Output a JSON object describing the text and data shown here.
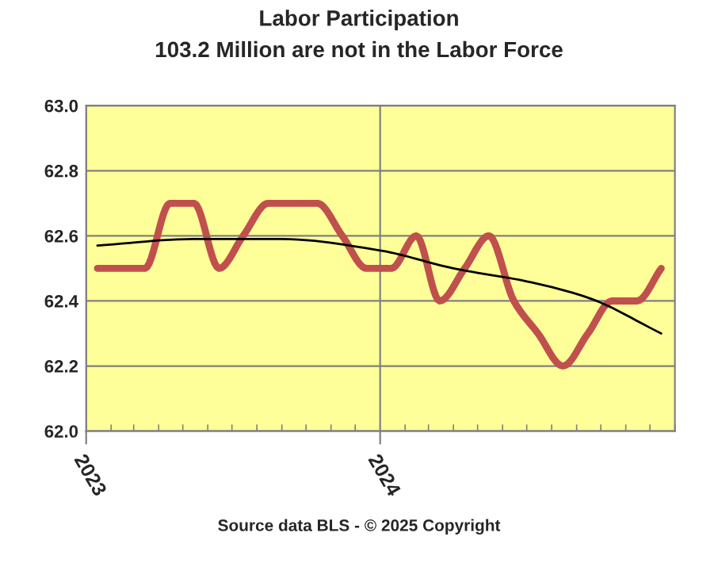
{
  "chart_data": {
    "type": "line",
    "title": "Labor Participation",
    "subtitle": "103.2 Million are not in the Labor Force",
    "annotations": [
      "Source data BLS - © 2025 Copyright"
    ],
    "series": [
      {
        "color": "#c0504d",
        "x": [
          "2023-01-15",
          "2023-02-15",
          "2023-03-15",
          "2023-04-15",
          "2023-05-15",
          "2023-06-15",
          "2023-07-15",
          "2023-08-15",
          "2023-09-15",
          "2023-10-15",
          "2023-11-15",
          "2023-12-15",
          "2024-01-15",
          "2024-02-15",
          "2024-03-15",
          "2024-04-15",
          "2024-05-15",
          "2024-06-15",
          "2024-07-15",
          "2024-08-15",
          "2024-09-15",
          "2024-10-15",
          "2024-11-15",
          "2024-12-15"
        ],
        "values": [
          62.5,
          62.5,
          62.5,
          62.7,
          62.7,
          62.5,
          62.6,
          62.7,
          62.7,
          62.7,
          62.6,
          62.5,
          62.5,
          62.6,
          62.4,
          62.5,
          62.6,
          62.4,
          62.3,
          62.2,
          62.3,
          62.4,
          62.4,
          62.5
        ]
      },
      {
        "color": "#000000",
        "x": [
          "2023-01-15",
          "2023-05-15",
          "2023-09-01",
          "2024-01-01",
          "2024-04-01",
          "2024-07-01",
          "2024-09-15",
          "2024-12-15"
        ],
        "values": [
          62.57,
          62.59,
          62.59,
          62.555,
          62.5,
          62.46,
          62.41,
          62.3
        ]
      }
    ],
    "xlim": [
      "2023-01-01",
      "2025-01-01"
    ],
    "xticks": [
      "2023",
      "2024"
    ],
    "ylim": [
      62.0,
      63.0
    ],
    "yticks": [
      {
        "value": 62.0,
        "label": "62.0"
      },
      {
        "value": 62.2,
        "label": "62.2"
      },
      {
        "value": 62.4,
        "label": "62.4"
      },
      {
        "value": 62.6,
        "label": "62.6"
      },
      {
        "value": 62.8,
        "label": "62.8"
      },
      {
        "value": 63.0,
        "label": "63.0"
      }
    ],
    "grid": true,
    "legend": false,
    "line_style": "solid",
    "marker": "none"
  }
}
